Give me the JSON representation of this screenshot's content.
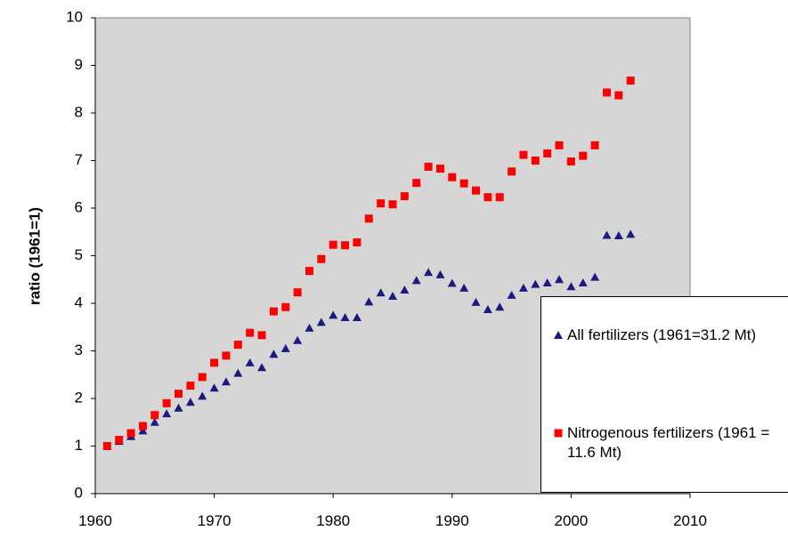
{
  "chart_data": {
    "type": "scatter",
    "y_label": "ratio (1961=1)",
    "x": [
      1961,
      1962,
      1963,
      1964,
      1965,
      1966,
      1967,
      1968,
      1969,
      1970,
      1971,
      1972,
      1973,
      1974,
      1975,
      1976,
      1977,
      1978,
      1979,
      1980,
      1981,
      1982,
      1983,
      1984,
      1985,
      1986,
      1987,
      1988,
      1989,
      1990,
      1991,
      1992,
      1993,
      1994,
      1995,
      1996,
      1997,
      1998,
      1999,
      2000,
      2001,
      2002,
      2003,
      2004,
      2005
    ],
    "series": [
      {
        "name": "All fertilizers (1961=31.2 Mt)",
        "color": "#1a1a80",
        "marker": "triangle",
        "values": [
          1.0,
          1.1,
          1.2,
          1.32,
          1.5,
          1.68,
          1.8,
          1.92,
          2.05,
          2.22,
          2.35,
          2.53,
          2.75,
          2.65,
          2.93,
          3.05,
          3.22,
          3.48,
          3.6,
          3.75,
          3.7,
          3.7,
          4.03,
          4.22,
          4.15,
          4.28,
          4.48,
          4.65,
          4.6,
          4.42,
          4.32,
          4.02,
          3.87,
          3.92,
          4.17,
          4.32,
          4.4,
          4.43,
          4.5,
          4.35,
          4.43,
          4.55,
          5.43,
          5.42,
          5.45
        ]
      },
      {
        "name": "Nitrogenous fertilizers (1961 = 11.6 Mt)",
        "color": "#ff0000",
        "marker": "square",
        "values": [
          1.0,
          1.13,
          1.27,
          1.42,
          1.65,
          1.9,
          2.1,
          2.27,
          2.45,
          2.75,
          2.9,
          3.13,
          3.38,
          3.33,
          3.83,
          3.92,
          4.23,
          4.68,
          4.93,
          5.23,
          5.22,
          5.28,
          5.78,
          6.1,
          6.08,
          6.25,
          6.53,
          6.87,
          6.83,
          6.65,
          6.52,
          6.37,
          6.23,
          6.23,
          6.77,
          7.12,
          7.0,
          7.15,
          7.32,
          6.98,
          7.1,
          7.32,
          8.43,
          8.37,
          8.68
        ]
      }
    ],
    "xlim": [
      1960,
      2010
    ],
    "xticks": [
      1960,
      1970,
      1980,
      1990,
      2000,
      2010
    ],
    "ylim": [
      0,
      10
    ],
    "yticks": [
      0,
      1,
      2,
      3,
      4,
      5,
      6,
      7,
      8,
      9,
      10
    ]
  }
}
